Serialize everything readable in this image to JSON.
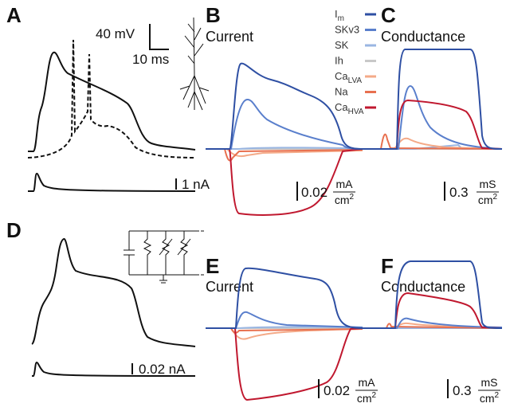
{
  "A": {
    "label": "A",
    "voltage_scale": "40 mV",
    "time_scale": "10 ms",
    "current_scale": "1 nA"
  },
  "B": {
    "label": "B",
    "title": "Current",
    "scale": {
      "value": "0.02",
      "numerator": "mA",
      "denominator": "cm",
      "exponent": "2"
    }
  },
  "C": {
    "label": "C",
    "title": "Conductance",
    "scale": {
      "value": "0.3",
      "numerator": "mS",
      "denominator": "cm",
      "exponent": "2"
    }
  },
  "D": {
    "label": "D",
    "current_scale": "0.02 nA"
  },
  "E": {
    "label": "E",
    "title": "Current",
    "scale": {
      "value": "0.02",
      "numerator": "mA",
      "denominator": "cm",
      "exponent": "2"
    }
  },
  "F": {
    "label": "F",
    "title": "Conductance",
    "scale": {
      "value": "0.3",
      "numerator": "mS",
      "denominator": "cm",
      "exponent": "2"
    }
  },
  "legend": [
    {
      "name": "I",
      "subscript": "m",
      "color": "#2e4fa3"
    },
    {
      "name": "SKv3",
      "color": "#5a7fcc"
    },
    {
      "name": "SK",
      "color": "#9ab6e2"
    },
    {
      "name": "Ih",
      "color": "#c8c8c8"
    },
    {
      "name": "Ca",
      "subscript": "LVA",
      "color": "#f4aa88"
    },
    {
      "name": "Na",
      "color": "#e8704f"
    },
    {
      "name": "Ca",
      "subscript": "HVA",
      "color": "#c0182f"
    }
  ]
}
